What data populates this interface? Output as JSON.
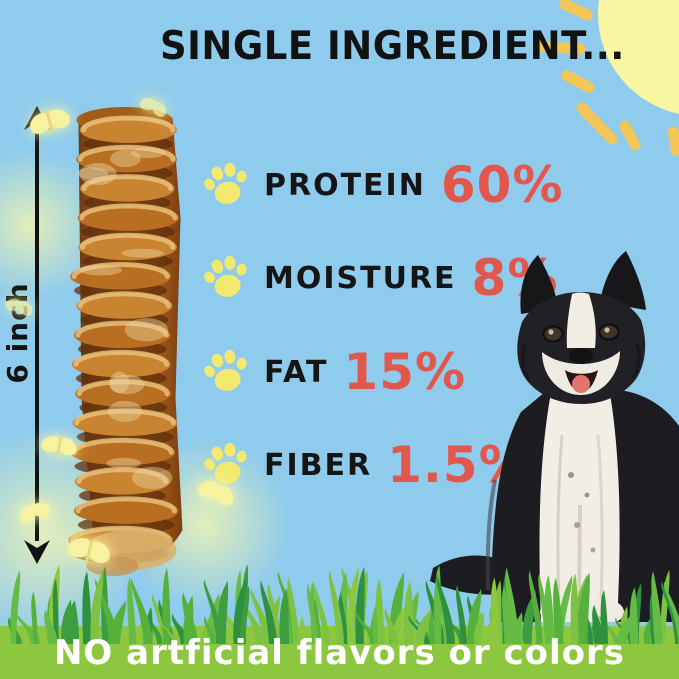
{
  "title": "SINGLE INGREDIENT...",
  "measurement": {
    "label": "6 inch"
  },
  "nutrition": {
    "rows": [
      {
        "label": "PROTEIN",
        "value": "60%"
      },
      {
        "label": "MOISTURE",
        "value": "8%"
      },
      {
        "label": "FAT",
        "value": "15%"
      },
      {
        "label": "FIBER",
        "value": "1.5%"
      }
    ]
  },
  "banner": {
    "text": "NO artficial flavors or colors"
  },
  "icons": {
    "paw": "paw-icon",
    "sun": "sun-icon",
    "butterfly": "butterfly-icon",
    "measure_arrow": "measure-arrow-icon"
  },
  "colors": {
    "sky": "#8fcbec",
    "accent_red": "#e2574c",
    "paw_yellow": "#f2e96e",
    "banner_green": "#8dc63f",
    "banner_text": "#ffffff",
    "sun_yellow": "#f9f6a3",
    "ray_gold": "#f2c757",
    "text_black": "#151515",
    "butterfly_yellow": "#f6f2a0"
  }
}
